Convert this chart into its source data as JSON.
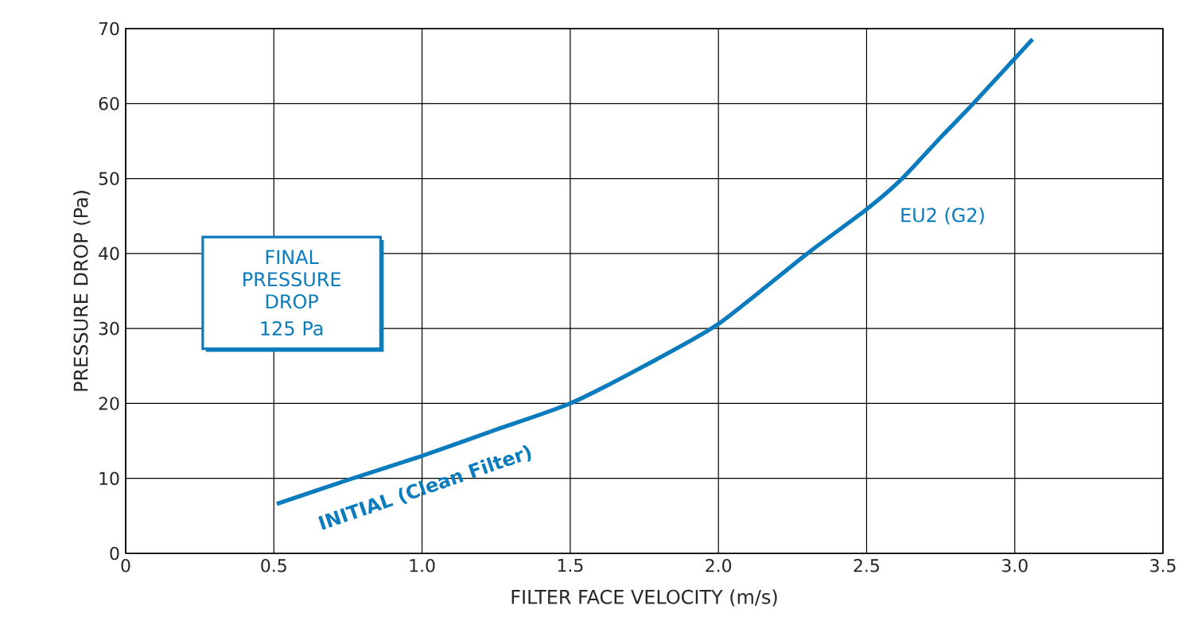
{
  "chart_data": {
    "type": "line",
    "xlabel": "FILTER FACE VELOCITY (m/s)",
    "ylabel": "PRESSURE DROP (Pa)",
    "xlim": [
      0,
      3.5
    ],
    "xticks": [
      0,
      {
        "value": 0.5,
        "label": "0.5"
      },
      {
        "value": 1,
        "label": "1.0"
      },
      {
        "value": 1.5,
        "label": "1.5"
      },
      {
        "value": 2,
        "label": "2.0"
      },
      {
        "value": 2.5,
        "label": "2.5"
      },
      {
        "value": 3,
        "label": "3.0"
      },
      {
        "value": 3.5,
        "label": "3.5"
      }
    ],
    "ylim": [
      0,
      70
    ],
    "yticks": [
      0,
      10,
      20,
      30,
      40,
      50,
      60,
      70
    ],
    "grid": true,
    "legend": false,
    "series": [
      {
        "name": "EU2 (G2)",
        "color": "#0a7bbd",
        "x": [
          0.51,
          0.75,
          1.0,
          1.25,
          1.5,
          1.75,
          2.0,
          2.3,
          2.5,
          2.62,
          2.75,
          2.86,
          3.06
        ],
        "values": [
          6.6,
          9.8,
          13.0,
          16.5,
          20.0,
          25.0,
          30.6,
          40.0,
          45.9,
          50.0,
          55.5,
          60.0,
          68.6
        ]
      }
    ],
    "annotations": [
      "FINAL PRESSURE DROP",
      "125 Pa",
      "INITIAL (Clean Filter)"
    ]
  }
}
